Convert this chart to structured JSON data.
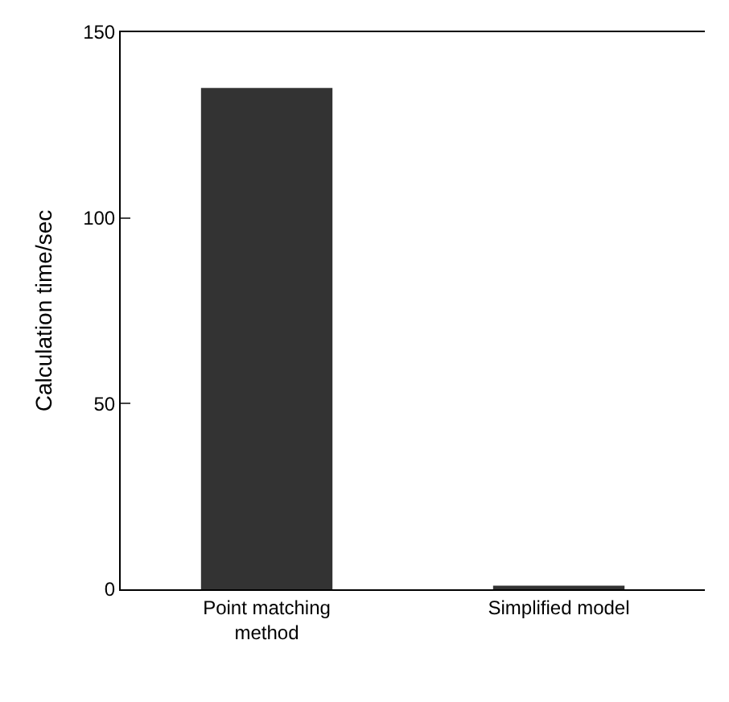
{
  "chart_data": {
    "type": "bar",
    "ylabel": "Calculation time/sec",
    "categories": [
      "Point matching method",
      "Simplified model"
    ],
    "values": [
      135,
      1
    ],
    "color": "#333333",
    "ylim": [
      0,
      150
    ],
    "yticks": [
      0,
      50,
      100,
      150
    ]
  }
}
